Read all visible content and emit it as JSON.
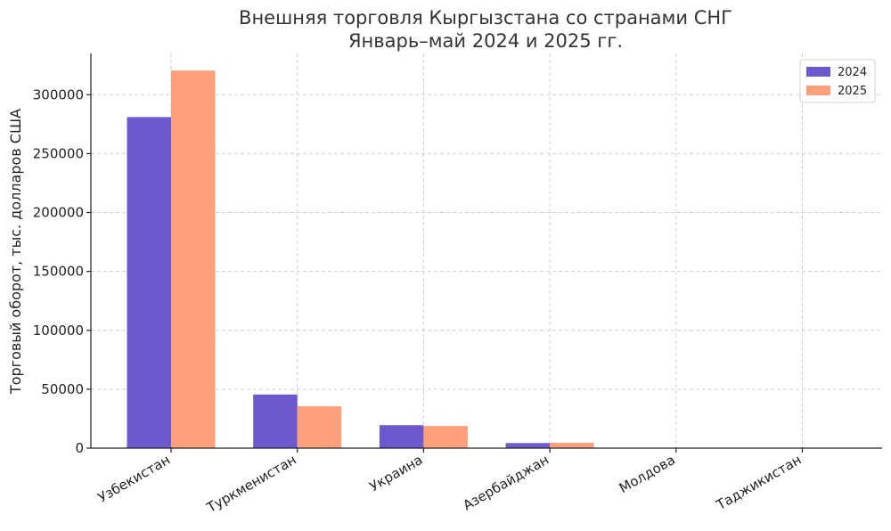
{
  "chart_data": {
    "type": "bar",
    "title": [
      "Внешняя торговля Кыргызстана со странами СНГ",
      "Январь–май 2024 и 2025 гг."
    ],
    "xlabel": "",
    "ylabel": "Торговый оборот, тыс. долларов США",
    "categories": [
      "Узбекистан",
      "Туркменистан",
      "Украина",
      "Азербайджан",
      "Молдова",
      "Таджикистан"
    ],
    "series": [
      {
        "name": "2024",
        "color": "#6a5acd",
        "values": [
          281000,
          45500,
          19500,
          4300,
          200,
          50
        ]
      },
      {
        "name": "2025",
        "color": "#ffa07a",
        "values": [
          320500,
          35500,
          18800,
          4600,
          150,
          40
        ]
      }
    ],
    "ylim": [
      0,
      335000
    ],
    "yticks": [
      0,
      50000,
      100000,
      150000,
      200000,
      250000,
      300000
    ],
    "grid": true,
    "legend_position": "top-right"
  }
}
